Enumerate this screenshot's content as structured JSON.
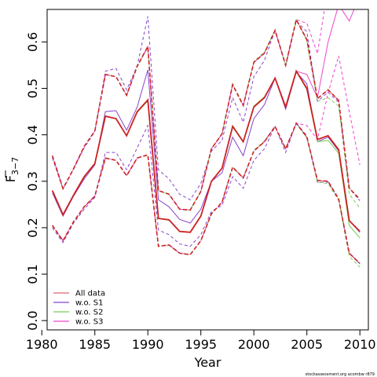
{
  "chart_data": {
    "type": "line",
    "title": "",
    "xlabel": "Year",
    "ylabel": "F",
    "ylabel_bar": "F",
    "ylabel_sub": "3−7",
    "xlim": [
      1980.5,
      2010.8
    ],
    "ylim": [
      -0.02,
      0.67
    ],
    "xticks": [
      1980,
      1985,
      1990,
      1995,
      2000,
      2005,
      2010
    ],
    "yticks": [
      "0.0",
      "0.1",
      "0.2",
      "0.3",
      "0.4",
      "0.5",
      "0.6"
    ],
    "ytick_values": [
      0.0,
      0.1,
      0.2,
      0.3,
      0.4,
      0.5,
      0.6
    ],
    "grid": false,
    "legend_position": "bottom-left",
    "credit": "stockassessment.org acombw r879",
    "x": [
      1981,
      1982,
      1983,
      1984,
      1985,
      1986,
      1987,
      1988,
      1989,
      1990,
      1991,
      1992,
      1993,
      1994,
      1995,
      1996,
      1997,
      1998,
      1999,
      2000,
      2001,
      2002,
      2003,
      2004,
      2005,
      2006,
      2007,
      2008,
      2009,
      2010
    ],
    "series": [
      {
        "name": "All data",
        "color": "#e06070",
        "values": [
          0.28,
          0.228,
          0.27,
          0.31,
          0.338,
          0.44,
          0.435,
          0.398,
          0.45,
          0.475,
          0.22,
          0.217,
          0.192,
          0.19,
          0.225,
          0.3,
          0.328,
          0.418,
          0.385,
          0.46,
          0.48,
          0.522,
          0.46,
          0.537,
          0.5,
          0.39,
          0.398,
          0.368,
          0.215,
          0.192
        ],
        "lower": [
          0.205,
          0.172,
          0.213,
          0.245,
          0.268,
          0.35,
          0.345,
          0.312,
          0.35,
          0.357,
          0.16,
          0.163,
          0.145,
          0.142,
          0.172,
          0.23,
          0.255,
          0.33,
          0.307,
          0.365,
          0.385,
          0.418,
          0.37,
          0.425,
          0.395,
          0.302,
          0.3,
          0.262,
          0.145,
          0.123
        ],
        "upper": [
          0.355,
          0.284,
          0.327,
          0.375,
          0.408,
          0.53,
          0.525,
          0.485,
          0.548,
          0.59,
          0.28,
          0.272,
          0.24,
          0.238,
          0.278,
          0.37,
          0.402,
          0.508,
          0.463,
          0.556,
          0.576,
          0.625,
          0.55,
          0.648,
          0.605,
          0.478,
          0.497,
          0.474,
          0.285,
          0.261
        ]
      },
      {
        "name": "w.o. S1",
        "color": "#8844cc",
        "values": [
          0.275,
          0.225,
          0.268,
          0.305,
          0.335,
          0.45,
          0.452,
          0.41,
          0.46,
          0.54,
          0.26,
          0.245,
          0.218,
          0.21,
          0.24,
          0.3,
          0.318,
          0.395,
          0.355,
          0.435,
          0.465,
          0.522,
          0.455,
          0.535,
          0.51,
          0.385,
          0.395,
          0.365,
          0.215,
          0.19
        ],
        "lower": [
          0.2,
          0.168,
          0.21,
          0.24,
          0.265,
          0.362,
          0.362,
          0.325,
          0.372,
          0.42,
          0.195,
          0.185,
          0.165,
          0.16,
          0.185,
          0.235,
          0.248,
          0.31,
          0.285,
          0.345,
          0.37,
          0.418,
          0.362,
          0.425,
          0.398,
          0.298,
          0.298,
          0.262,
          0.145,
          0.122
        ],
        "upper": [
          0.35,
          0.283,
          0.326,
          0.372,
          0.407,
          0.537,
          0.543,
          0.497,
          0.548,
          0.655,
          0.325,
          0.305,
          0.272,
          0.26,
          0.295,
          0.365,
          0.388,
          0.48,
          0.427,
          0.525,
          0.56,
          0.625,
          0.548,
          0.645,
          0.622,
          0.472,
          0.492,
          0.47,
          0.285,
          0.258
        ]
      },
      {
        "name": "w.o. S2",
        "color": "#77cc55",
        "values": [
          0.28,
          0.228,
          0.27,
          0.31,
          0.338,
          0.44,
          0.435,
          0.398,
          0.448,
          0.473,
          0.22,
          0.216,
          0.192,
          0.19,
          0.225,
          0.3,
          0.328,
          0.42,
          0.386,
          0.462,
          0.482,
          0.522,
          0.46,
          0.537,
          0.497,
          0.385,
          0.388,
          0.36,
          0.205,
          0.178
        ],
        "lower": [
          0.205,
          0.172,
          0.213,
          0.245,
          0.268,
          0.35,
          0.345,
          0.312,
          0.35,
          0.356,
          0.16,
          0.162,
          0.145,
          0.142,
          0.172,
          0.23,
          0.255,
          0.332,
          0.308,
          0.367,
          0.387,
          0.418,
          0.37,
          0.425,
          0.393,
          0.298,
          0.295,
          0.258,
          0.138,
          0.115
        ],
        "upper": [
          0.355,
          0.284,
          0.327,
          0.375,
          0.408,
          0.53,
          0.525,
          0.485,
          0.546,
          0.588,
          0.28,
          0.271,
          0.24,
          0.238,
          0.278,
          0.37,
          0.402,
          0.51,
          0.465,
          0.558,
          0.578,
          0.625,
          0.55,
          0.648,
          0.602,
          0.472,
          0.48,
          0.462,
          0.272,
          0.242
        ]
      },
      {
        "name": "w.o. S3",
        "color": "#ee44cc",
        "values": [
          0.28,
          0.228,
          0.27,
          0.31,
          0.338,
          0.44,
          0.435,
          0.398,
          0.45,
          0.475,
          0.22,
          0.217,
          0.192,
          0.19,
          0.225,
          0.3,
          0.328,
          0.418,
          0.385,
          0.46,
          0.48,
          0.522,
          0.46,
          0.537,
          0.53,
          0.48,
          0.6,
          0.68,
          0.645,
          0.7
        ],
        "lower": [
          0.205,
          0.172,
          0.213,
          0.245,
          0.268,
          0.35,
          0.345,
          0.312,
          0.35,
          0.357,
          0.16,
          0.163,
          0.145,
          0.142,
          0.172,
          0.23,
          0.255,
          0.33,
          0.307,
          0.365,
          0.385,
          0.418,
          0.37,
          0.425,
          0.42,
          0.39,
          0.49,
          0.57,
          0.45,
          0.335
        ],
        "upper": [
          0.355,
          0.284,
          0.327,
          0.375,
          0.408,
          0.53,
          0.525,
          0.485,
          0.548,
          0.59,
          0.28,
          0.272,
          0.24,
          0.238,
          0.278,
          0.37,
          0.402,
          0.508,
          0.463,
          0.556,
          0.576,
          0.625,
          0.55,
          0.648,
          0.64,
          0.575,
          0.72,
          0.79,
          0.79,
          0.79
        ]
      }
    ]
  }
}
